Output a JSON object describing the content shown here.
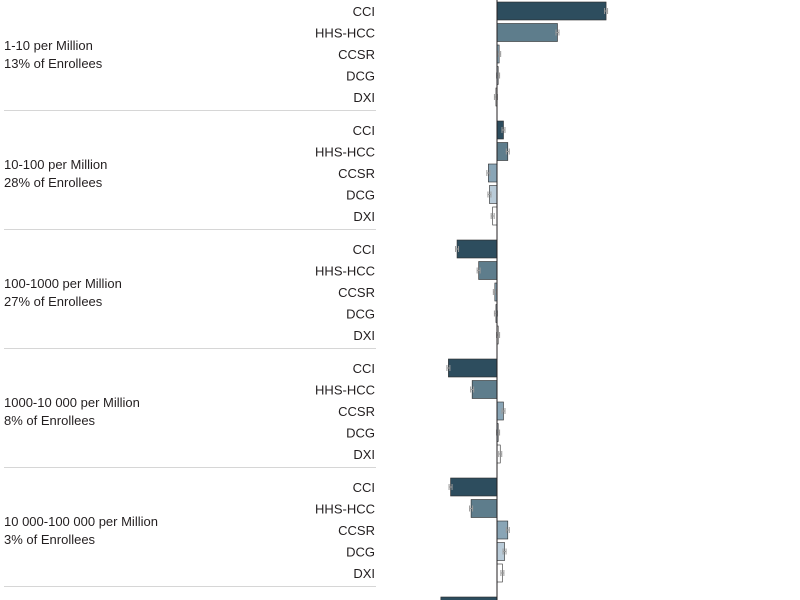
{
  "chart_data": {
    "type": "bar",
    "orientation": "horizontal",
    "title": "",
    "xlabel": "",
    "ylabel": "",
    "colors": {
      "CCI": "#2d4d5e",
      "HHS-HCC": "#5e7d8c",
      "CCSR": "#89a5b6",
      "DCG": "#b9cbd8",
      "DXI": "#ffffff"
    },
    "models": [
      "CCI",
      "HHS-HCC",
      "CCSR",
      "DCG",
      "DXI"
    ],
    "groups": [
      {
        "label": "1-10 per Million",
        "sublabel": "13% of Enrollees",
        "values": [
          1.01,
          0.56,
          0.02,
          0.01,
          -0.01
        ]
      },
      {
        "label": "10-100 per Million",
        "sublabel": "28% of Enrollees",
        "values": [
          0.06,
          0.1,
          -0.08,
          -0.07,
          -0.04
        ]
      },
      {
        "label": "100-1000 per Million",
        "sublabel": "27% of Enrollees",
        "values": [
          -0.37,
          -0.17,
          -0.02,
          -0.01,
          0.01
        ]
      },
      {
        "label": "1000-10 000 per Million",
        "sublabel": "8% of Enrollees",
        "values": [
          -0.45,
          -0.23,
          0.06,
          0.01,
          0.03
        ]
      },
      {
        "label": "10 000-100 000 per Million",
        "sublabel": "3% of Enrollees",
        "values": [
          -0.43,
          -0.24,
          0.1,
          0.07,
          0.05
        ]
      },
      {
        "label": "",
        "sublabel": "",
        "values": [
          -0.52
        ]
      }
    ],
    "last_group_partial_label": "CCI"
  }
}
